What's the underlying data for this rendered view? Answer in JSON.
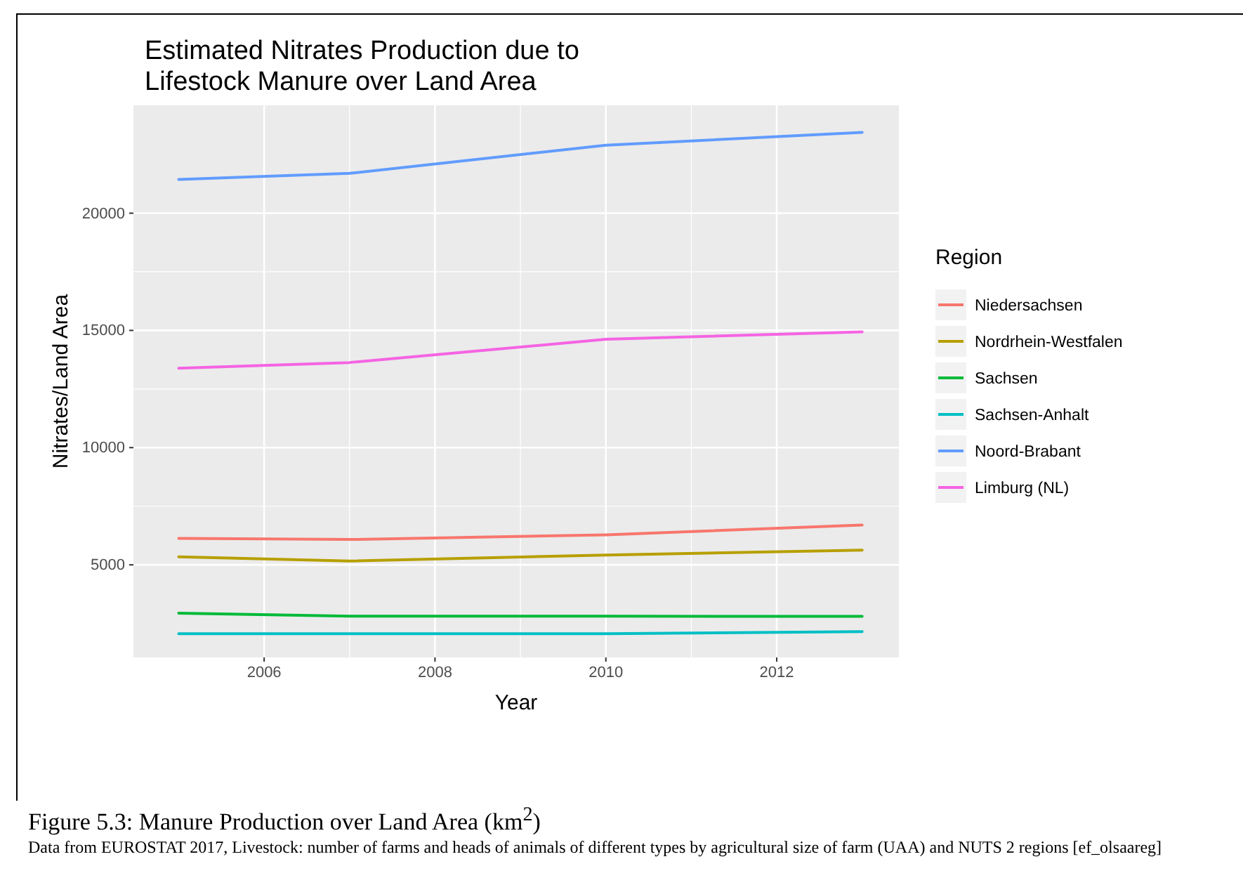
{
  "chart_data": {
    "type": "line",
    "title": "Estimated Nitrates Production due to\nLifestock Manure over Land Area",
    "xlabel": "Year",
    "ylabel": "Nitrates/Land Area",
    "legend_title": "Region",
    "legend": "right",
    "grid": true,
    "x": [
      2005,
      2007,
      2010,
      2013
    ],
    "xlim": [
      2004.47,
      2013.43
    ],
    "xticks": [
      2006,
      2008,
      2010,
      2012
    ],
    "ylim": [
      1050,
      24600
    ],
    "yticks": [
      5000,
      10000,
      15000,
      20000
    ],
    "series": [
      {
        "name": "Niedersachsen",
        "color": "#f8766d",
        "values": [
          6130,
          6080,
          6280,
          6700
        ]
      },
      {
        "name": "Nordrhein-Westfalen",
        "color": "#b79f00",
        "values": [
          5340,
          5160,
          5420,
          5630
        ]
      },
      {
        "name": "Sachsen",
        "color": "#00ba38",
        "values": [
          2940,
          2810,
          2810,
          2800
        ]
      },
      {
        "name": "Sachsen-Anhalt",
        "color": "#00bfc4",
        "values": [
          2060,
          2060,
          2060,
          2150
        ]
      },
      {
        "name": "Noord-Brabant",
        "color": "#619cff",
        "values": [
          21440,
          21700,
          22900,
          23450
        ]
      },
      {
        "name": "Limburg (NL)",
        "color": "#f564e3",
        "values": [
          13390,
          13630,
          14620,
          14940
        ]
      }
    ],
    "annotations": [
      "Figure 5.3: Manure Production over Land Area (km$^{2}$)",
      "Data from EUROSTAT 2017, Livestock: number of farms and heads of animals of different types by agricultural size of farm (UAA) and NUTS 2 regions [ef_olsaareg]"
    ]
  }
}
